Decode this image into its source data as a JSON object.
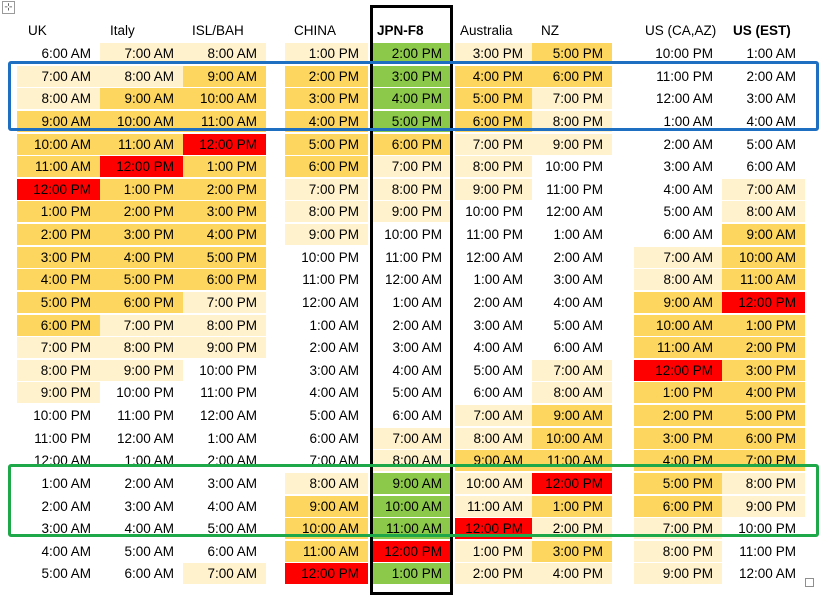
{
  "handles": {
    "move_icon": "⊹"
  },
  "colors": {
    "Y": "#fdd65f",
    "L": "#fff2cc",
    "R": "#ff0000",
    "G": "#8cc84a",
    "W": "#ffffff",
    "blue_outline": "#1e6fc2",
    "green_outline": "#1fa84a",
    "jpn_outline": "#000000"
  },
  "columns": [
    {
      "header": "UK",
      "bold": false
    },
    {
      "header": "Italy",
      "bold": false
    },
    {
      "header": "ISL/BAH",
      "bold": false
    },
    {
      "header": "CHINA",
      "bold": false
    },
    {
      "header": "JPN-F8",
      "bold": true
    },
    {
      "header": "Australia",
      "bold": false
    },
    {
      "header": "NZ",
      "bold": false
    },
    {
      "header": "US (CA,AZ)",
      "bold": false
    },
    {
      "header": "US (EST)",
      "bold": true
    }
  ],
  "rows": [
    {
      "times": [
        "6:00 AM",
        "7:00 AM",
        "8:00 AM",
        "1:00 PM",
        "2:00 PM",
        "3:00 PM",
        "5:00 PM",
        "10:00 PM",
        "1:00 AM"
      ],
      "fills": [
        "W",
        "L",
        "L",
        "L",
        "G",
        "L",
        "Y",
        "W",
        "W"
      ]
    },
    {
      "times": [
        "7:00 AM",
        "8:00 AM",
        "9:00 AM",
        "2:00 PM",
        "3:00 PM",
        "4:00 PM",
        "6:00 PM",
        "11:00 PM",
        "2:00 AM"
      ],
      "fills": [
        "L",
        "L",
        "Y",
        "Y",
        "G",
        "Y",
        "Y",
        "W",
        "W"
      ]
    },
    {
      "times": [
        "8:00 AM",
        "9:00 AM",
        "10:00 AM",
        "3:00 PM",
        "4:00 PM",
        "5:00 PM",
        "7:00 PM",
        "12:00 AM",
        "3:00 AM"
      ],
      "fills": [
        "L",
        "Y",
        "Y",
        "Y",
        "G",
        "Y",
        "L",
        "W",
        "W"
      ]
    },
    {
      "times": [
        "9:00 AM",
        "10:00 AM",
        "11:00 AM",
        "4:00 PM",
        "5:00 PM",
        "6:00 PM",
        "8:00 PM",
        "1:00 AM",
        "4:00 AM"
      ],
      "fills": [
        "Y",
        "Y",
        "Y",
        "Y",
        "G",
        "Y",
        "L",
        "W",
        "W"
      ]
    },
    {
      "times": [
        "10:00 AM",
        "11:00 AM",
        "12:00 PM",
        "5:00 PM",
        "6:00 PM",
        "7:00 PM",
        "9:00 PM",
        "2:00 AM",
        "5:00 AM"
      ],
      "fills": [
        "Y",
        "Y",
        "R",
        "Y",
        "Y",
        "L",
        "L",
        "W",
        "W"
      ]
    },
    {
      "times": [
        "11:00 AM",
        "12:00 PM",
        "1:00 PM",
        "6:00 PM",
        "7:00 PM",
        "8:00 PM",
        "10:00 PM",
        "3:00 AM",
        "6:00 AM"
      ],
      "fills": [
        "Y",
        "R",
        "Y",
        "Y",
        "L",
        "L",
        "W",
        "W",
        "W"
      ]
    },
    {
      "times": [
        "12:00 PM",
        "1:00 PM",
        "2:00 PM",
        "7:00 PM",
        "8:00 PM",
        "9:00 PM",
        "11:00 PM",
        "4:00 AM",
        "7:00 AM"
      ],
      "fills": [
        "R",
        "Y",
        "Y",
        "L",
        "L",
        "L",
        "W",
        "W",
        "L"
      ]
    },
    {
      "times": [
        "1:00 PM",
        "2:00 PM",
        "3:00 PM",
        "8:00 PM",
        "9:00 PM",
        "10:00 PM",
        "12:00 AM",
        "5:00 AM",
        "8:00 AM"
      ],
      "fills": [
        "Y",
        "Y",
        "Y",
        "L",
        "L",
        "W",
        "W",
        "W",
        "L"
      ]
    },
    {
      "times": [
        "2:00 PM",
        "3:00 PM",
        "4:00 PM",
        "9:00 PM",
        "10:00 PM",
        "11:00 PM",
        "1:00 AM",
        "6:00 AM",
        "9:00 AM"
      ],
      "fills": [
        "Y",
        "Y",
        "Y",
        "L",
        "W",
        "W",
        "W",
        "W",
        "Y"
      ]
    },
    {
      "times": [
        "3:00 PM",
        "4:00 PM",
        "5:00 PM",
        "10:00 PM",
        "11:00 PM",
        "12:00 AM",
        "2:00 AM",
        "7:00 AM",
        "10:00 AM"
      ],
      "fills": [
        "Y",
        "Y",
        "Y",
        "W",
        "W",
        "W",
        "W",
        "L",
        "Y"
      ]
    },
    {
      "times": [
        "4:00 PM",
        "5:00 PM",
        "6:00 PM",
        "11:00 PM",
        "12:00 AM",
        "1:00 AM",
        "3:00 AM",
        "8:00 AM",
        "11:00 AM"
      ],
      "fills": [
        "Y",
        "Y",
        "Y",
        "W",
        "W",
        "W",
        "W",
        "L",
        "Y"
      ]
    },
    {
      "times": [
        "5:00 PM",
        "6:00 PM",
        "7:00 PM",
        "12:00 AM",
        "1:00 AM",
        "2:00 AM",
        "4:00 AM",
        "9:00 AM",
        "12:00 PM"
      ],
      "fills": [
        "Y",
        "Y",
        "L",
        "W",
        "W",
        "W",
        "W",
        "Y",
        "R"
      ]
    },
    {
      "times": [
        "6:00 PM",
        "7:00 PM",
        "8:00 PM",
        "1:00 AM",
        "2:00 AM",
        "3:00 AM",
        "5:00 AM",
        "10:00 AM",
        "1:00 PM"
      ],
      "fills": [
        "Y",
        "L",
        "L",
        "W",
        "W",
        "W",
        "W",
        "Y",
        "Y"
      ]
    },
    {
      "times": [
        "7:00 PM",
        "8:00 PM",
        "9:00 PM",
        "2:00 AM",
        "3:00 AM",
        "4:00 AM",
        "6:00 AM",
        "11:00 AM",
        "2:00 PM"
      ],
      "fills": [
        "L",
        "L",
        "L",
        "W",
        "W",
        "W",
        "W",
        "Y",
        "Y"
      ]
    },
    {
      "times": [
        "8:00 PM",
        "9:00 PM",
        "10:00 PM",
        "3:00 AM",
        "4:00 AM",
        "5:00 AM",
        "7:00 AM",
        "12:00 PM",
        "3:00 PM"
      ],
      "fills": [
        "L",
        "L",
        "W",
        "W",
        "W",
        "W",
        "L",
        "R",
        "Y"
      ]
    },
    {
      "times": [
        "9:00 PM",
        "10:00 PM",
        "11:00 PM",
        "4:00 AM",
        "5:00 AM",
        "6:00 AM",
        "8:00 AM",
        "1:00 PM",
        "4:00 PM"
      ],
      "fills": [
        "L",
        "W",
        "W",
        "W",
        "W",
        "W",
        "L",
        "Y",
        "Y"
      ]
    },
    {
      "times": [
        "10:00 PM",
        "11:00 PM",
        "12:00 AM",
        "5:00 AM",
        "6:00 AM",
        "7:00 AM",
        "9:00 AM",
        "2:00 PM",
        "5:00 PM"
      ],
      "fills": [
        "W",
        "W",
        "W",
        "W",
        "W",
        "L",
        "Y",
        "Y",
        "Y"
      ]
    },
    {
      "times": [
        "11:00 PM",
        "12:00 AM",
        "1:00 AM",
        "6:00 AM",
        "7:00 AM",
        "8:00 AM",
        "10:00 AM",
        "3:00 PM",
        "6:00 PM"
      ],
      "fills": [
        "W",
        "W",
        "W",
        "W",
        "L",
        "L",
        "Y",
        "Y",
        "Y"
      ]
    },
    {
      "times": [
        "12:00 AM",
        "1:00 AM",
        "2:00 AM",
        "7:00 AM",
        "8:00 AM",
        "9:00 AM",
        "11:00 AM",
        "4:00 PM",
        "7:00 PM"
      ],
      "fills": [
        "W",
        "W",
        "W",
        "W",
        "L",
        "Y",
        "Y",
        "Y",
        "Y"
      ]
    },
    {
      "times": [
        "1:00 AM",
        "2:00 AM",
        "3:00 AM",
        "8:00 AM",
        "9:00 AM",
        "10:00 AM",
        "12:00 PM",
        "5:00 PM",
        "8:00 PM"
      ],
      "fills": [
        "W",
        "W",
        "W",
        "L",
        "G",
        "L",
        "R",
        "Y",
        "L"
      ]
    },
    {
      "times": [
        "2:00 AM",
        "3:00 AM",
        "4:00 AM",
        "9:00 AM",
        "10:00 AM",
        "11:00 AM",
        "1:00 PM",
        "6:00 PM",
        "9:00 PM"
      ],
      "fills": [
        "W",
        "W",
        "W",
        "Y",
        "G",
        "L",
        "Y",
        "Y",
        "L"
      ]
    },
    {
      "times": [
        "3:00 AM",
        "4:00 AM",
        "5:00 AM",
        "10:00 AM",
        "11:00 AM",
        "12:00 PM",
        "2:00 PM",
        "7:00 PM",
        "10:00 PM"
      ],
      "fills": [
        "W",
        "W",
        "W",
        "Y",
        "G",
        "R",
        "L",
        "L",
        "W"
      ]
    },
    {
      "times": [
        "4:00 AM",
        "5:00 AM",
        "6:00 AM",
        "11:00 AM",
        "12:00 PM",
        "1:00 PM",
        "3:00 PM",
        "8:00 PM",
        "11:00 PM"
      ],
      "fills": [
        "W",
        "W",
        "W",
        "Y",
        "R",
        "L",
        "Y",
        "L",
        "W"
      ]
    },
    {
      "times": [
        "5:00 AM",
        "6:00 AM",
        "7:00 AM",
        "12:00 PM",
        "1:00 PM",
        "2:00 PM",
        "4:00 PM",
        "9:00 PM",
        "12:00 AM"
      ],
      "fills": [
        "W",
        "W",
        "L",
        "R",
        "G",
        "L",
        "L",
        "L",
        "W"
      ]
    }
  ]
}
